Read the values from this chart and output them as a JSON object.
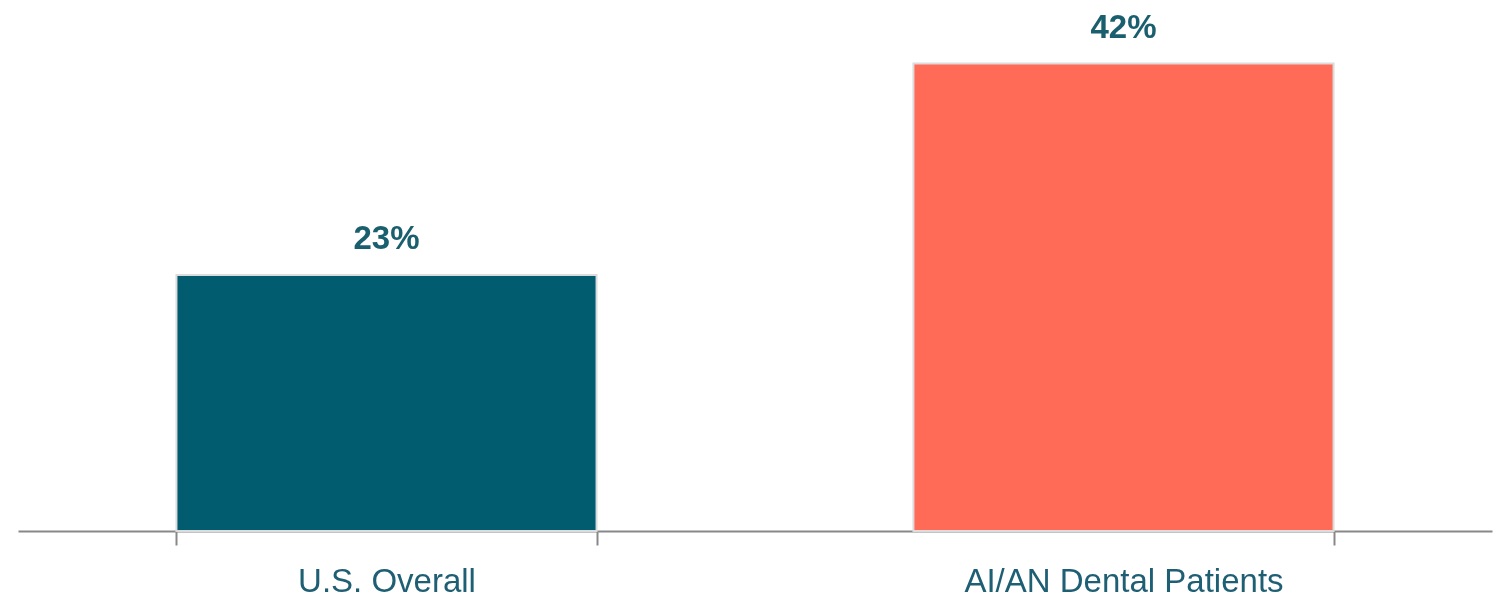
{
  "chart_data": {
    "type": "bar",
    "categories": [
      "U.S. Overall",
      "AI/AN Dental Patients"
    ],
    "values": [
      23,
      42
    ],
    "colors": [
      "#025c70",
      "#ff6b57"
    ],
    "value_labels": [
      "23%",
      "42%"
    ],
    "grid": false
  }
}
